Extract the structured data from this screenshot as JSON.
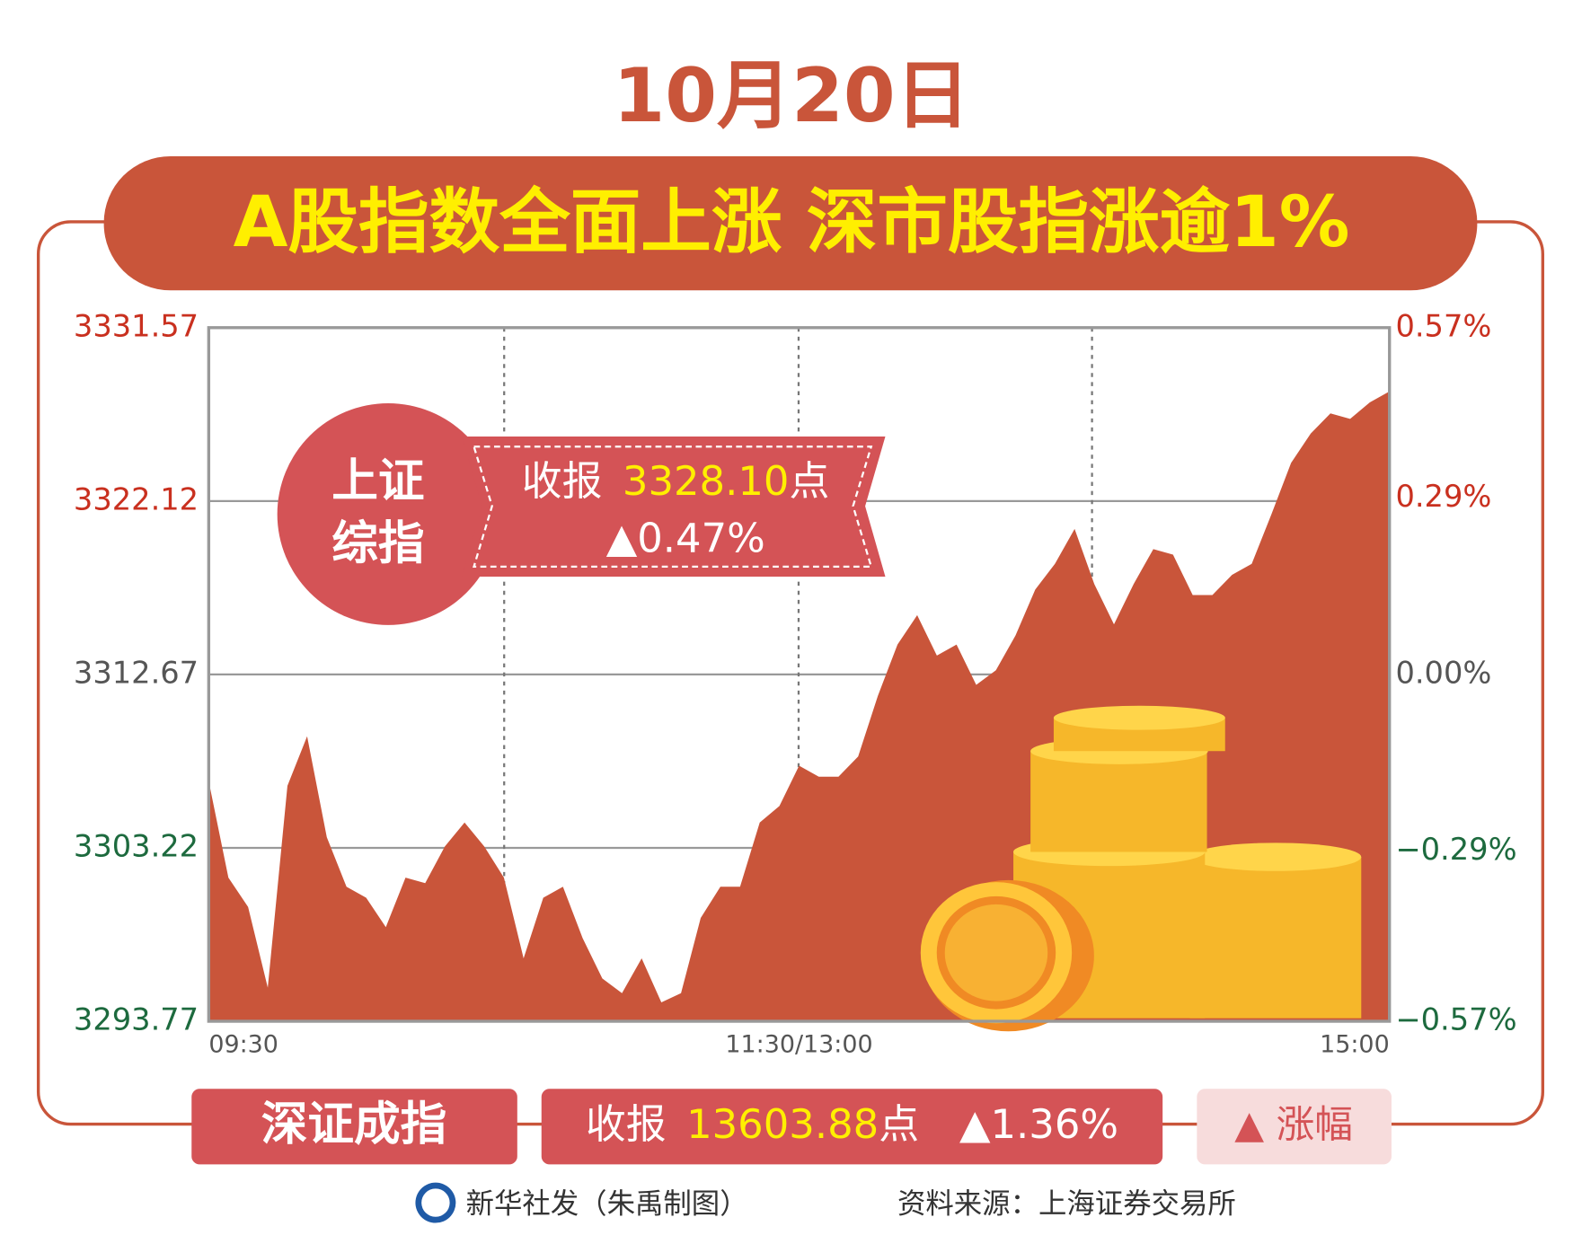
{
  "chart_data": {
    "type": "area",
    "subtitle": "10月20日",
    "title": "A股指数全面上涨  深市股指涨逾1%",
    "color": "#c9553a",
    "categories": [
      "09:30",
      null,
      null,
      null,
      null,
      null,
      null,
      null,
      null,
      null,
      null,
      null,
      null,
      null,
      null,
      null,
      null,
      null,
      null,
      null,
      null,
      null,
      null,
      null,
      null,
      null,
      null,
      null,
      null,
      null,
      "11:30/13:00",
      null,
      null,
      null,
      null,
      null,
      null,
      null,
      null,
      null,
      null,
      null,
      null,
      null,
      null,
      null,
      null,
      null,
      null,
      null,
      null,
      null,
      null,
      null,
      null,
      null,
      null,
      null,
      null,
      null,
      "15:00"
    ],
    "values": [
      3306.85,
      3301.6,
      3300.0,
      3295.6,
      3306.6,
      3309.3,
      3303.8,
      3301.1,
      3300.5,
      3298.9,
      3301.6,
      3301.3,
      3303.3,
      3304.6,
      3303.3,
      3301.6,
      3297.2,
      3300.5,
      3301.1,
      3298.3,
      3296.1,
      3295.3,
      3297.2,
      3294.8,
      3295.3,
      3299.4,
      3301.1,
      3301.1,
      3304.6,
      3305.5,
      3307.7,
      3307.1,
      3307.1,
      3308.2,
      3311.5,
      3314.3,
      3315.9,
      3313.7,
      3314.3,
      3312.1,
      3312.9,
      3314.8,
      3317.3,
      3318.7,
      3320.6,
      3317.6,
      3315.4,
      3317.6,
      3319.5,
      3319.2,
      3317.0,
      3317.0,
      3318.1,
      3318.7,
      3321.4,
      3324.2,
      3325.8,
      3326.9,
      3326.6,
      3327.5,
      3328.1
    ],
    "ylim": [
      3293.77,
      3331.57
    ],
    "yticks": [
      3293.77,
      3303.22,
      3312.67,
      3322.12,
      3331.57
    ],
    "y2lim": [
      -0.57,
      0.57
    ],
    "y2ticks": [
      {
        "value": -0.57,
        "label": "−0.57%"
      },
      {
        "value": -0.29,
        "label": "−0.29%"
      },
      {
        "value": 0,
        "label": "0.00%"
      },
      {
        "value": 0.29,
        "label": "0.29%"
      },
      {
        "value": 0.57,
        "label": "0.57%"
      }
    ],
    "tick_colors": [
      "#1d6a3e",
      "#1d6a3e",
      "#555555",
      "#c9301f",
      "#c9301f"
    ],
    "grid": true,
    "annotation": {
      "name": [
        "上证",
        "综指"
      ],
      "close_label": "收报",
      "close_value": "3328.10",
      "unit": "点",
      "change": "▲0.47%"
    },
    "panel": {
      "name": "深证成指",
      "close_label": "收报",
      "close_value": "13603.88",
      "unit": "点",
      "change": "▲1.36%"
    },
    "legend_label": "▲ 涨幅",
    "credit": "新华社发（朱禹制图）",
    "source": "资料来源：上海证券交易所"
  }
}
